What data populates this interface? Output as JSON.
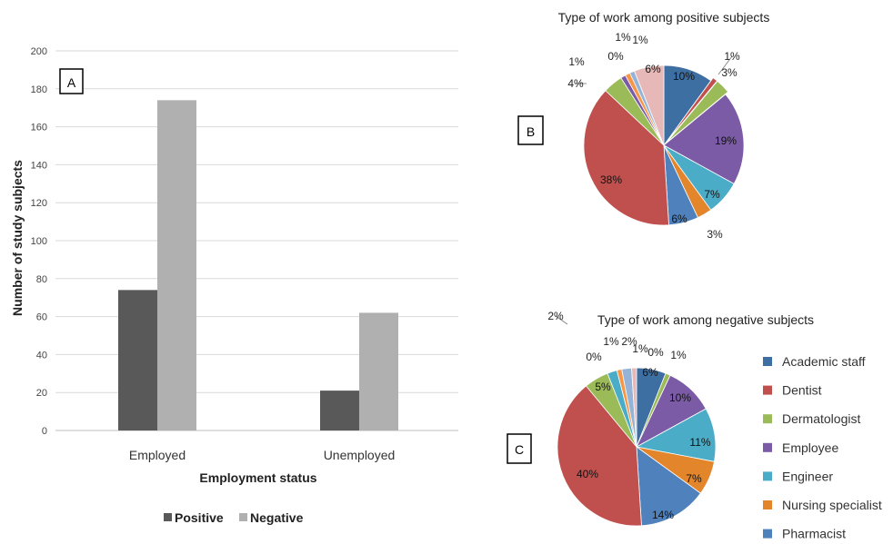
{
  "chart_data": [
    {
      "id": "A",
      "panel_label": "A",
      "type": "bar",
      "categories": [
        "Employed",
        "Unemployed"
      ],
      "series": [
        {
          "name": "Positive",
          "values": [
            74,
            21
          ],
          "color": "#595959"
        },
        {
          "name": "Negative",
          "values": [
            174,
            62
          ],
          "color": "#b0b0b0"
        }
      ],
      "xlabel": "Employment status",
      "ylabel": "Number of study subjects",
      "ylim": [
        0,
        200
      ],
      "yticks": [
        "0",
        "20",
        "40",
        "60",
        "80",
        "100",
        "120",
        "140",
        "160",
        "180",
        "200"
      ],
      "grid": true,
      "legend_position": "bottom"
    },
    {
      "id": "B",
      "panel_label": "B",
      "type": "pie",
      "title": "Type of work among positive subjects",
      "slices": [
        {
          "value": 10,
          "label": "10%",
          "color": "#3d6fa3"
        },
        {
          "value": 1,
          "label": "1%",
          "color": "#c0504d"
        },
        {
          "value": 3,
          "label": "3%",
          "color": "#9bbb59"
        },
        {
          "value": 19,
          "label": "19%",
          "color": "#7b5aa6"
        },
        {
          "value": 7,
          "label": "7%",
          "color": "#4aacc6"
        },
        {
          "value": 3,
          "label": "3%",
          "color": "#e3852a"
        },
        {
          "value": 6,
          "label": "6%",
          "color": "#4f81bd"
        },
        {
          "value": 38,
          "label": "38%",
          "color": "#c0504d"
        },
        {
          "value": 4,
          "label": "4%",
          "color": "#9bbb59"
        },
        {
          "value": 1,
          "label": "1%",
          "color": "#7b5aa6"
        },
        {
          "value": 0,
          "label": "0%",
          "color": "#4aacc6"
        },
        {
          "value": 1,
          "label": "1%",
          "color": "#f79646"
        },
        {
          "value": 1,
          "label": "1%",
          "color": "#95b3d7"
        },
        {
          "value": 6,
          "label": "6%",
          "color": "#e6b8b7"
        }
      ]
    },
    {
      "id": "C",
      "panel_label": "C",
      "type": "pie",
      "title": "Type of work among negative subjects",
      "slices": [
        {
          "value": 6,
          "label": "6%",
          "color": "#3d6fa3"
        },
        {
          "value": 0,
          "label": "0%",
          "color": "#c0504d"
        },
        {
          "value": 1,
          "label": "1%",
          "color": "#9bbb59"
        },
        {
          "value": 10,
          "label": "10%",
          "color": "#7b5aa6"
        },
        {
          "value": 11,
          "label": "11%",
          "color": "#4aacc6"
        },
        {
          "value": 7,
          "label": "7%",
          "color": "#e3852a"
        },
        {
          "value": 14,
          "label": "14%",
          "color": "#4f81bd"
        },
        {
          "value": 40,
          "label": "40%",
          "color": "#c0504d"
        },
        {
          "value": 5,
          "label": "5%",
          "color": "#9bbb59"
        },
        {
          "value": 0,
          "label": "0%",
          "color": "#7b5aa6"
        },
        {
          "value": 2,
          "label": "2%",
          "color": "#4aacc6"
        },
        {
          "value": 1,
          "label": "1%",
          "color": "#f79646"
        },
        {
          "value": 2,
          "label": "2%",
          "color": "#95b3d7"
        },
        {
          "value": 1,
          "label": "1%",
          "color": "#e6b8b7"
        }
      ],
      "legend": [
        {
          "label": "Academic staff",
          "color": "#3d6fa3"
        },
        {
          "label": "Dentist",
          "color": "#c0504d"
        },
        {
          "label": "Dermatologist",
          "color": "#9bbb59"
        },
        {
          "label": "Employee",
          "color": "#7b5aa6"
        },
        {
          "label": "Engineer",
          "color": "#4aacc6"
        },
        {
          "label": "Nursing specialist",
          "color": "#e3852a"
        },
        {
          "label": "Pharmacist",
          "color": "#4f81bd"
        }
      ],
      "legend_position": "right"
    }
  ]
}
